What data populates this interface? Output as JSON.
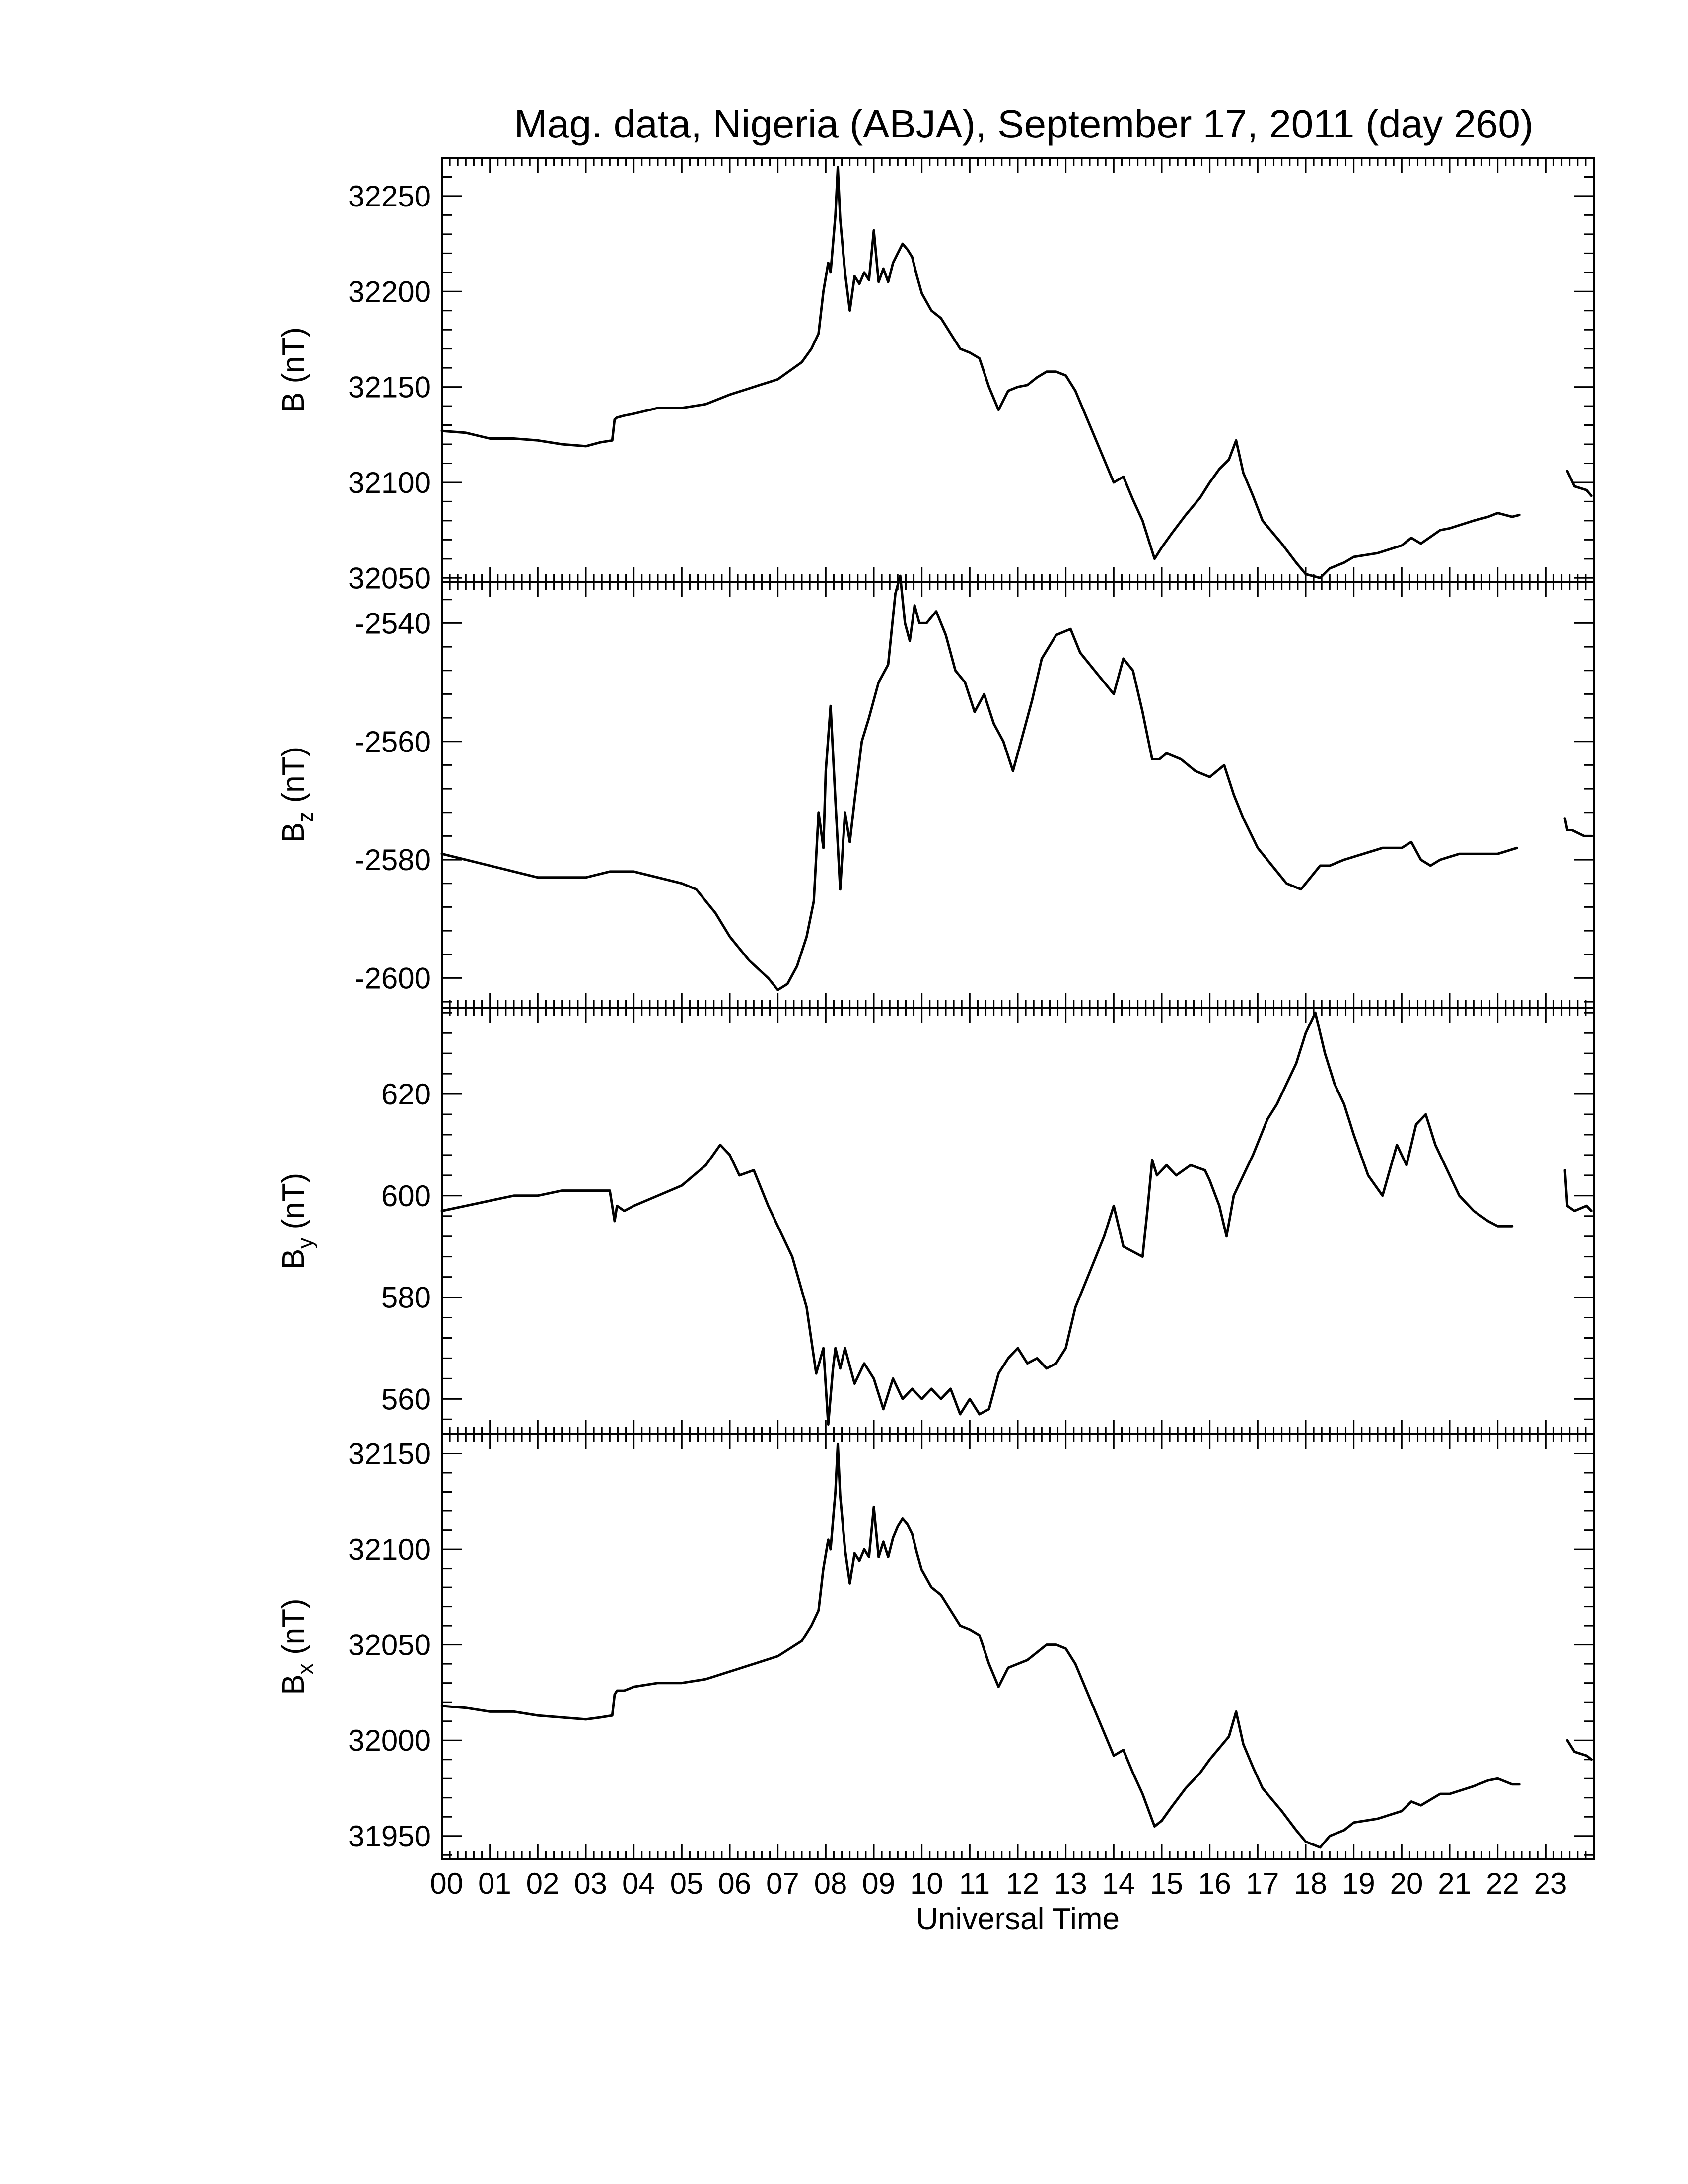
{
  "chart_data": {
    "type": "line",
    "title": "Mag. data, Nigeria (ABJA), September 17, 2011 (day 260)",
    "xlabel": "Universal Time",
    "xlim": [
      0,
      24
    ],
    "x_tick_labels": [
      "00",
      "01",
      "02",
      "03",
      "04",
      "05",
      "06",
      "07",
      "08",
      "09",
      "10",
      "11",
      "12",
      "13",
      "14",
      "15",
      "16",
      "17",
      "18",
      "19",
      "20",
      "21",
      "22",
      "23"
    ],
    "panels": [
      {
        "key": "B",
        "ylabel_main": "B",
        "ylabel_sub": "",
        "ylabel_unit": "(nT)",
        "ylim": [
          32048,
          32270
        ],
        "yticks": [
          32050,
          32100,
          32150,
          32200,
          32250
        ],
        "ytick_labels": [
          "32050",
          "32100",
          "32150",
          "32200",
          "32250"
        ],
        "x": [
          0.0,
          0.5,
          1.0,
          1.5,
          2.0,
          2.5,
          3.0,
          3.3,
          3.55,
          3.6,
          3.65,
          3.8,
          4.0,
          4.5,
          5.0,
          5.5,
          6.0,
          6.5,
          7.0,
          7.5,
          7.7,
          7.85,
          7.95,
          8.05,
          8.1,
          8.2,
          8.25,
          8.3,
          8.4,
          8.5,
          8.6,
          8.7,
          8.8,
          8.9,
          9.0,
          9.1,
          9.2,
          9.3,
          9.4,
          9.5,
          9.6,
          9.7,
          9.8,
          9.9,
          10.0,
          10.2,
          10.4,
          10.6,
          10.8,
          11.0,
          11.2,
          11.4,
          11.6,
          11.8,
          12.0,
          12.2,
          12.4,
          12.6,
          12.8,
          13.0,
          13.2,
          13.5,
          13.8,
          14.0,
          14.2,
          14.4,
          14.6,
          14.85,
          15.0,
          15.2,
          15.5,
          15.8,
          16.0,
          16.2,
          16.4,
          16.55,
          16.7,
          16.9,
          17.1,
          17.5,
          17.8,
          18.0,
          18.3,
          18.5,
          18.8,
          19.0,
          19.5,
          20.0,
          20.2,
          20.4,
          20.8,
          21.0,
          21.5,
          21.8,
          22.0,
          22.3,
          22.45,
          23.4,
          23.45,
          23.6,
          23.85,
          23.95
        ],
        "y": [
          32127,
          32126,
          32123,
          32123,
          32122,
          32120,
          32119,
          32121,
          32122,
          32133,
          32134,
          32135,
          32136,
          32139,
          32139,
          32141,
          32146,
          32150,
          32154,
          32163,
          32170,
          32178,
          32200,
          32215,
          32210,
          32240,
          32265,
          32238,
          32210,
          32190,
          32208,
          32204,
          32210,
          32206,
          32232,
          32205,
          32212,
          32205,
          32215,
          32220,
          32225,
          32222,
          32218,
          32208,
          32199,
          32190,
          32186,
          32178,
          32170,
          32168,
          32165,
          32150,
          32138,
          32148,
          32150,
          32151,
          32155,
          32158,
          32158,
          32156,
          32148,
          32130,
          32112,
          32100,
          32103,
          32091,
          32080,
          32060,
          32066,
          32073,
          32083,
          32092,
          32100,
          32107,
          32112,
          32122,
          32105,
          32093,
          32080,
          32068,
          32058,
          32052,
          32050,
          32055,
          32058,
          32061,
          32063,
          32067,
          32071,
          32068,
          32075,
          32076,
          32080,
          32082,
          32084,
          32082,
          32083,
          null,
          32106,
          32098,
          32096,
          32093
        ]
      },
      {
        "key": "Bz",
        "ylabel_main": "B",
        "ylabel_sub": "z",
        "ylabel_unit": "(nT)",
        "ylim": [
          -2605,
          -2533
        ],
        "yticks": [
          -2600,
          -2580,
          -2560,
          -2540
        ],
        "ytick_labels": [
          "-2600",
          "-2580",
          "-2560",
          "-2540"
        ],
        "x": [
          0.0,
          0.5,
          1.0,
          1.5,
          2.0,
          2.5,
          3.0,
          3.5,
          3.7,
          4.0,
          4.5,
          5.0,
          5.3,
          5.7,
          6.0,
          6.4,
          6.8,
          7.0,
          7.2,
          7.4,
          7.6,
          7.75,
          7.85,
          7.95,
          8.0,
          8.1,
          8.2,
          8.3,
          8.4,
          8.5,
          8.6,
          8.75,
          8.9,
          9.1,
          9.3,
          9.45,
          9.55,
          9.65,
          9.75,
          9.85,
          9.95,
          10.1,
          10.3,
          10.5,
          10.7,
          10.9,
          11.1,
          11.3,
          11.5,
          11.7,
          11.9,
          12.1,
          12.3,
          12.5,
          12.8,
          13.1,
          13.3,
          13.6,
          13.8,
          14.0,
          14.2,
          14.4,
          14.6,
          14.8,
          14.95,
          15.1,
          15.4,
          15.7,
          16.0,
          16.3,
          16.5,
          16.7,
          17.0,
          17.3,
          17.6,
          17.9,
          18.1,
          18.3,
          18.5,
          18.8,
          19.2,
          19.6,
          20.0,
          20.2,
          20.4,
          20.6,
          20.8,
          21.2,
          21.6,
          22.0,
          22.4,
          22.45,
          23.4,
          23.45,
          23.55,
          23.8,
          23.95
        ],
        "y": [
          -2579,
          -2580,
          -2581,
          -2582,
          -2583,
          -2583,
          -2583,
          -2582,
          -2582,
          -2582,
          -2583,
          -2584,
          -2585,
          -2589,
          -2593,
          -2597,
          -2600,
          -2602,
          -2601,
          -2598,
          -2593,
          -2587,
          -2572,
          -2578,
          -2565,
          -2554,
          -2570,
          -2585,
          -2572,
          -2577,
          -2570,
          -2560,
          -2556,
          -2550,
          -2547,
          -2535,
          -2532,
          -2540,
          -2543,
          -2537,
          -2540,
          -2540,
          -2538,
          -2542,
          -2548,
          -2550,
          -2555,
          -2552,
          -2557,
          -2560,
          -2565,
          -2559,
          -2553,
          -2546,
          -2542,
          -2541,
          -2545,
          -2548,
          -2550,
          -2552,
          -2546,
          -2548,
          -2555,
          -2563,
          -2563,
          -2562,
          -2563,
          -2565,
          -2566,
          -2564,
          -2569,
          -2573,
          -2578,
          -2581,
          -2584,
          -2585,
          -2583,
          -2581,
          -2581,
          -2580,
          -2579,
          -2578,
          -2578,
          -2577,
          -2580,
          -2581,
          -2580,
          -2579,
          -2579,
          -2579,
          -2578,
          null,
          -2573,
          -2575,
          -2575,
          -2576,
          -2576
        ]
      },
      {
        "key": "By",
        "ylabel_main": "B",
        "ylabel_sub": "y",
        "ylabel_unit": "(nT)",
        "ylim": [
          553,
          637
        ],
        "yticks": [
          560,
          580,
          600,
          620
        ],
        "ytick_labels": [
          "560",
          "580",
          "600",
          "620"
        ],
        "x": [
          0.0,
          0.5,
          1.0,
          1.5,
          2.0,
          2.5,
          3.0,
          3.5,
          3.6,
          3.65,
          3.8,
          4.0,
          4.5,
          5.0,
          5.5,
          5.8,
          6.0,
          6.2,
          6.5,
          6.8,
          7.0,
          7.3,
          7.6,
          7.8,
          7.95,
          8.05,
          8.15,
          8.2,
          8.3,
          8.4,
          8.6,
          8.8,
          9.0,
          9.2,
          9.4,
          9.6,
          9.8,
          10.0,
          10.2,
          10.4,
          10.6,
          10.8,
          11.0,
          11.2,
          11.4,
          11.6,
          11.8,
          12.0,
          12.2,
          12.4,
          12.6,
          12.8,
          13.0,
          13.2,
          13.5,
          13.8,
          14.0,
          14.1,
          14.2,
          14.4,
          14.6,
          14.7,
          14.8,
          14.9,
          15.1,
          15.3,
          15.6,
          15.9,
          16.0,
          16.2,
          16.35,
          16.5,
          16.7,
          16.9,
          17.2,
          17.4,
          17.6,
          17.8,
          18.0,
          18.2,
          18.4,
          18.6,
          18.8,
          19.0,
          19.3,
          19.6,
          19.9,
          20.1,
          20.3,
          20.5,
          20.7,
          20.9,
          21.2,
          21.5,
          21.8,
          22.0,
          22.3,
          22.45,
          23.4,
          23.45,
          23.6,
          23.85,
          23.95
        ],
        "y": [
          597,
          598,
          599,
          600,
          600,
          601,
          601,
          601,
          595,
          598,
          597,
          598,
          600,
          602,
          606,
          610,
          608,
          604,
          605,
          598,
          594,
          588,
          578,
          565,
          570,
          555,
          566,
          570,
          566,
          570,
          563,
          567,
          564,
          558,
          564,
          560,
          562,
          560,
          562,
          560,
          562,
          557,
          560,
          557,
          558,
          565,
          568,
          570,
          567,
          568,
          566,
          567,
          570,
          578,
          585,
          592,
          598,
          594,
          590,
          589,
          588,
          597,
          607,
          604,
          606,
          604,
          606,
          605,
          603,
          598,
          592,
          600,
          604,
          608,
          615,
          618,
          622,
          626,
          632,
          636,
          628,
          622,
          618,
          612,
          604,
          600,
          610,
          606,
          614,
          616,
          610,
          606,
          600,
          597,
          595,
          594,
          594,
          null,
          605,
          598,
          597,
          598,
          597
        ]
      },
      {
        "key": "Bx",
        "ylabel_main": "B",
        "ylabel_sub": "x",
        "ylabel_unit": "(nT)",
        "ylim": [
          31938,
          32160
        ],
        "yticks": [
          31950,
          32000,
          32050,
          32100,
          32150
        ],
        "ytick_labels": [
          "31950",
          "32000",
          "32050",
          "32100",
          "32150"
        ],
        "x": [
          0.0,
          0.5,
          1.0,
          1.5,
          2.0,
          2.5,
          3.0,
          3.3,
          3.55,
          3.6,
          3.65,
          3.8,
          4.0,
          4.5,
          5.0,
          5.5,
          6.0,
          6.5,
          7.0,
          7.5,
          7.7,
          7.85,
          7.95,
          8.05,
          8.1,
          8.2,
          8.25,
          8.3,
          8.4,
          8.5,
          8.6,
          8.7,
          8.8,
          8.9,
          9.0,
          9.1,
          9.2,
          9.3,
          9.4,
          9.5,
          9.6,
          9.7,
          9.8,
          9.9,
          10.0,
          10.2,
          10.4,
          10.6,
          10.8,
          11.0,
          11.2,
          11.4,
          11.6,
          11.8,
          12.0,
          12.2,
          12.4,
          12.6,
          12.8,
          13.0,
          13.2,
          13.5,
          13.8,
          14.0,
          14.2,
          14.4,
          14.6,
          14.85,
          15.0,
          15.2,
          15.5,
          15.8,
          16.0,
          16.2,
          16.4,
          16.55,
          16.7,
          16.9,
          17.1,
          17.5,
          17.8,
          18.0,
          18.3,
          18.5,
          18.8,
          19.0,
          19.5,
          20.0,
          20.2,
          20.4,
          20.8,
          21.0,
          21.5,
          21.8,
          22.0,
          22.3,
          22.45,
          23.4,
          23.45,
          23.6,
          23.85,
          23.95
        ],
        "y": [
          32018,
          32017,
          32015,
          32015,
          32013,
          32012,
          32011,
          32012,
          32013,
          32024,
          32026,
          32026,
          32028,
          32030,
          32030,
          32032,
          32036,
          32040,
          32044,
          32052,
          32060,
          32068,
          32090,
          32105,
          32100,
          32130,
          32155,
          32128,
          32100,
          32082,
          32098,
          32094,
          32100,
          32096,
          32122,
          32096,
          32104,
          32096,
          32106,
          32112,
          32116,
          32113,
          32108,
          32098,
          32089,
          32080,
          32076,
          32068,
          32060,
          32058,
          32055,
          32040,
          32028,
          32038,
          32040,
          32042,
          32046,
          32050,
          32050,
          32048,
          32040,
          32022,
          32004,
          31992,
          31995,
          31983,
          31972,
          31955,
          31958,
          31965,
          31975,
          31983,
          31990,
          31996,
          32002,
          32015,
          31998,
          31986,
          31975,
          31963,
          31953,
          31947,
          31944,
          31950,
          31953,
          31957,
          31959,
          31963,
          31968,
          31966,
          31972,
          31972,
          31976,
          31979,
          31980,
          31977,
          31977,
          null,
          32000,
          31994,
          31992,
          31990
        ]
      }
    ]
  }
}
